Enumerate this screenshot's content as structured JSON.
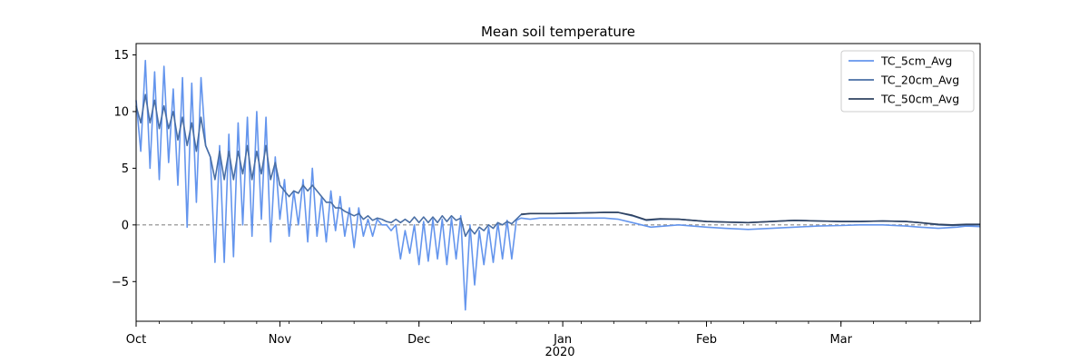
{
  "chart_data": {
    "type": "line",
    "title": "Mean soil temperature",
    "xlabel": "",
    "ylabel": "",
    "x_tick_labels": [
      "Oct",
      "Nov",
      "Dec",
      "Jan",
      "Feb",
      "Mar"
    ],
    "x_tick_dates": [
      "2019-10-01",
      "2019-11-01",
      "2019-12-01",
      "2020-01-01",
      "2020-02-01",
      "2020-03-01"
    ],
    "x_year_label": "2020",
    "xlim": [
      "2019-10-01",
      "2020-03-31"
    ],
    "y_ticks": [
      -5,
      0,
      5,
      10,
      15
    ],
    "y_tick_labels": [
      "−5",
      "0",
      "5",
      "10",
      "15"
    ],
    "ylim": [
      -8.5,
      16
    ],
    "reference_line": {
      "y": 0,
      "style": "dashed",
      "color": "#888888"
    },
    "legend_position": "top-right",
    "grid": false,
    "series": [
      {
        "name": "TC_5cm_Avg",
        "color": "#6495ED",
        "points": [
          [
            "2019-10-01",
            11.0
          ],
          [
            "2019-10-02",
            6.5
          ],
          [
            "2019-10-03",
            14.5
          ],
          [
            "2019-10-04",
            5.0
          ],
          [
            "2019-10-05",
            13.5
          ],
          [
            "2019-10-06",
            4.0
          ],
          [
            "2019-10-07",
            14.0
          ],
          [
            "2019-10-08",
            5.5
          ],
          [
            "2019-10-09",
            12.0
          ],
          [
            "2019-10-10",
            3.5
          ],
          [
            "2019-10-11",
            13.0
          ],
          [
            "2019-10-12",
            -0.2
          ],
          [
            "2019-10-13",
            12.5
          ],
          [
            "2019-10-14",
            2.0
          ],
          [
            "2019-10-15",
            13.0
          ],
          [
            "2019-10-16",
            7.0
          ],
          [
            "2019-10-17",
            6.0
          ],
          [
            "2019-10-18",
            -3.3
          ],
          [
            "2019-10-19",
            7.0
          ],
          [
            "2019-10-20",
            -3.3
          ],
          [
            "2019-10-21",
            8.0
          ],
          [
            "2019-10-22",
            -2.8
          ],
          [
            "2019-10-23",
            9.0
          ],
          [
            "2019-10-24",
            0.0
          ],
          [
            "2019-10-25",
            9.5
          ],
          [
            "2019-10-26",
            -1.0
          ],
          [
            "2019-10-27",
            10.0
          ],
          [
            "2019-10-28",
            0.5
          ],
          [
            "2019-10-29",
            9.5
          ],
          [
            "2019-10-30",
            -1.5
          ],
          [
            "2019-10-31",
            6.0
          ],
          [
            "2019-11-01",
            0.5
          ],
          [
            "2019-11-02",
            4.0
          ],
          [
            "2019-11-03",
            -1.0
          ],
          [
            "2019-11-04",
            3.0
          ],
          [
            "2019-11-05",
            0.0
          ],
          [
            "2019-11-06",
            4.0
          ],
          [
            "2019-11-07",
            -1.5
          ],
          [
            "2019-11-08",
            5.0
          ],
          [
            "2019-11-09",
            -1.0
          ],
          [
            "2019-11-10",
            2.5
          ],
          [
            "2019-11-11",
            -1.5
          ],
          [
            "2019-11-12",
            3.0
          ],
          [
            "2019-11-13",
            -0.5
          ],
          [
            "2019-11-14",
            2.5
          ],
          [
            "2019-11-15",
            -1.0
          ],
          [
            "2019-11-16",
            1.5
          ],
          [
            "2019-11-17",
            -2.0
          ],
          [
            "2019-11-18",
            1.5
          ],
          [
            "2019-11-19",
            -1.0
          ],
          [
            "2019-11-20",
            0.5
          ],
          [
            "2019-11-21",
            -1.0
          ],
          [
            "2019-11-22",
            0.5
          ],
          [
            "2019-11-23",
            0.0
          ],
          [
            "2019-11-24",
            0.0
          ],
          [
            "2019-11-25",
            -0.5
          ],
          [
            "2019-11-26",
            0.0
          ],
          [
            "2019-11-27",
            -3.0
          ],
          [
            "2019-11-28",
            -0.5
          ],
          [
            "2019-11-29",
            -2.5
          ],
          [
            "2019-11-30",
            0.0
          ],
          [
            "2019-12-01",
            -3.5
          ],
          [
            "2019-12-02",
            0.3
          ],
          [
            "2019-12-03",
            -3.2
          ],
          [
            "2019-12-04",
            0.5
          ],
          [
            "2019-12-05",
            -3.0
          ],
          [
            "2019-12-06",
            0.5
          ],
          [
            "2019-12-07",
            -3.5
          ],
          [
            "2019-12-08",
            0.6
          ],
          [
            "2019-12-09",
            -3.0
          ],
          [
            "2019-12-10",
            0.8
          ],
          [
            "2019-12-11",
            -7.5
          ],
          [
            "2019-12-12",
            0.0
          ],
          [
            "2019-12-13",
            -5.3
          ],
          [
            "2019-12-14",
            -0.5
          ],
          [
            "2019-12-15",
            -3.5
          ],
          [
            "2019-12-16",
            -0.2
          ],
          [
            "2019-12-17",
            -3.3
          ],
          [
            "2019-12-18",
            0.2
          ],
          [
            "2019-12-19",
            -3.0
          ],
          [
            "2019-12-20",
            0.4
          ],
          [
            "2019-12-21",
            -3.0
          ],
          [
            "2019-12-22",
            0.4
          ],
          [
            "2019-12-23",
            0.6
          ],
          [
            "2019-12-25",
            0.5
          ],
          [
            "2019-12-27",
            0.6
          ],
          [
            "2019-12-30",
            0.6
          ],
          [
            "2020-01-05",
            0.6
          ],
          [
            "2020-01-10",
            0.6
          ],
          [
            "2020-01-13",
            0.5
          ],
          [
            "2020-01-16",
            0.2
          ],
          [
            "2020-01-20",
            -0.2
          ],
          [
            "2020-01-23",
            -0.1
          ],
          [
            "2020-01-26",
            0.0
          ],
          [
            "2020-01-29",
            -0.1
          ],
          [
            "2020-02-01",
            -0.2
          ],
          [
            "2020-02-05",
            -0.3
          ],
          [
            "2020-02-10",
            -0.4
          ],
          [
            "2020-02-15",
            -0.3
          ],
          [
            "2020-02-20",
            -0.2
          ],
          [
            "2020-02-25",
            -0.1
          ],
          [
            "2020-03-01",
            -0.05
          ],
          [
            "2020-03-05",
            0.0
          ],
          [
            "2020-03-10",
            0.0
          ],
          [
            "2020-03-15",
            -0.1
          ],
          [
            "2020-03-18",
            -0.2
          ],
          [
            "2020-03-22",
            -0.3
          ],
          [
            "2020-03-26",
            -0.2
          ],
          [
            "2020-03-28",
            -0.1
          ],
          [
            "2020-03-31",
            -0.15
          ]
        ]
      },
      {
        "name": "TC_20cm_Avg",
        "color": "#4A6FA5",
        "points": [
          [
            "2019-10-01",
            10.5
          ],
          [
            "2019-10-02",
            9.0
          ],
          [
            "2019-10-03",
            11.5
          ],
          [
            "2019-10-04",
            9.0
          ],
          [
            "2019-10-05",
            11.0
          ],
          [
            "2019-10-06",
            8.5
          ],
          [
            "2019-10-07",
            10.5
          ],
          [
            "2019-10-08",
            8.5
          ],
          [
            "2019-10-09",
            10.0
          ],
          [
            "2019-10-10",
            7.5
          ],
          [
            "2019-10-11",
            9.5
          ],
          [
            "2019-10-12",
            7.0
          ],
          [
            "2019-10-13",
            9.0
          ],
          [
            "2019-10-14",
            6.5
          ],
          [
            "2019-10-15",
            9.5
          ],
          [
            "2019-10-16",
            7.0
          ],
          [
            "2019-10-17",
            6.0
          ],
          [
            "2019-10-18",
            4.0
          ],
          [
            "2019-10-19",
            6.5
          ],
          [
            "2019-10-20",
            4.0
          ],
          [
            "2019-10-21",
            6.5
          ],
          [
            "2019-10-22",
            4.0
          ],
          [
            "2019-10-23",
            6.5
          ],
          [
            "2019-10-24",
            4.5
          ],
          [
            "2019-10-25",
            7.0
          ],
          [
            "2019-10-26",
            4.0
          ],
          [
            "2019-10-27",
            6.5
          ],
          [
            "2019-10-28",
            4.5
          ],
          [
            "2019-10-29",
            7.0
          ],
          [
            "2019-10-30",
            4.0
          ],
          [
            "2019-10-31",
            5.5
          ],
          [
            "2019-11-01",
            3.5
          ],
          [
            "2019-11-02",
            3.0
          ],
          [
            "2019-11-03",
            2.5
          ],
          [
            "2019-11-04",
            3.0
          ],
          [
            "2019-11-05",
            2.8
          ],
          [
            "2019-11-06",
            3.5
          ],
          [
            "2019-11-07",
            3.0
          ],
          [
            "2019-11-08",
            3.5
          ],
          [
            "2019-11-09",
            3.0
          ],
          [
            "2019-11-10",
            2.5
          ],
          [
            "2019-11-11",
            2.0
          ],
          [
            "2019-11-12",
            2.0
          ],
          [
            "2019-11-13",
            1.5
          ],
          [
            "2019-11-14",
            1.5
          ],
          [
            "2019-11-15",
            1.2
          ],
          [
            "2019-11-16",
            1.0
          ],
          [
            "2019-11-17",
            0.8
          ],
          [
            "2019-11-18",
            1.0
          ],
          [
            "2019-11-19",
            0.5
          ],
          [
            "2019-11-20",
            0.8
          ],
          [
            "2019-11-21",
            0.4
          ],
          [
            "2019-11-22",
            0.6
          ],
          [
            "2019-11-23",
            0.5
          ],
          [
            "2019-11-24",
            0.3
          ],
          [
            "2019-11-25",
            0.2
          ],
          [
            "2019-11-26",
            0.5
          ],
          [
            "2019-11-27",
            0.2
          ],
          [
            "2019-11-28",
            0.5
          ],
          [
            "2019-11-29",
            0.2
          ],
          [
            "2019-11-30",
            0.7
          ],
          [
            "2019-12-01",
            0.2
          ],
          [
            "2019-12-02",
            0.7
          ],
          [
            "2019-12-03",
            0.2
          ],
          [
            "2019-12-04",
            0.7
          ],
          [
            "2019-12-05",
            0.2
          ],
          [
            "2019-12-06",
            0.8
          ],
          [
            "2019-12-07",
            0.3
          ],
          [
            "2019-12-08",
            0.8
          ],
          [
            "2019-12-09",
            0.4
          ],
          [
            "2019-12-10",
            0.6
          ],
          [
            "2019-12-11",
            -1.0
          ],
          [
            "2019-12-12",
            -0.3
          ],
          [
            "2019-12-13",
            -0.8
          ],
          [
            "2019-12-14",
            -0.2
          ],
          [
            "2019-12-15",
            -0.5
          ],
          [
            "2019-12-16",
            0.0
          ],
          [
            "2019-12-17",
            -0.3
          ],
          [
            "2019-12-18",
            0.2
          ],
          [
            "2019-12-19",
            0.0
          ],
          [
            "2019-12-20",
            0.3
          ],
          [
            "2019-12-21",
            0.1
          ],
          [
            "2019-12-22",
            0.5
          ],
          [
            "2019-12-23",
            0.9
          ],
          [
            "2019-12-25",
            1.0
          ],
          [
            "2019-12-30",
            1.0
          ],
          [
            "2020-01-05",
            1.05
          ],
          [
            "2020-01-10",
            1.1
          ],
          [
            "2020-01-13",
            1.1
          ],
          [
            "2020-01-16",
            0.8
          ],
          [
            "2020-01-19",
            0.4
          ],
          [
            "2020-01-22",
            0.5
          ],
          [
            "2020-01-26",
            0.5
          ],
          [
            "2020-01-29",
            0.4
          ],
          [
            "2020-02-01",
            0.3
          ],
          [
            "2020-02-05",
            0.25
          ],
          [
            "2020-02-10",
            0.2
          ],
          [
            "2020-02-15",
            0.3
          ],
          [
            "2020-02-20",
            0.4
          ],
          [
            "2020-02-25",
            0.35
          ],
          [
            "2020-03-01",
            0.3
          ],
          [
            "2020-03-05",
            0.3
          ],
          [
            "2020-03-10",
            0.35
          ],
          [
            "2020-03-15",
            0.3
          ],
          [
            "2020-03-18",
            0.2
          ],
          [
            "2020-03-22",
            0.0
          ],
          [
            "2020-03-25",
            -0.05
          ],
          [
            "2020-03-28",
            0.0
          ],
          [
            "2020-03-31",
            0.0
          ]
        ]
      },
      {
        "name": "TC_50cm_Avg",
        "color": "#2F4260",
        "points": [
          [
            "2019-12-23",
            0.95
          ],
          [
            "2019-12-25",
            1.0
          ],
          [
            "2019-12-30",
            1.0
          ],
          [
            "2020-01-05",
            1.05
          ],
          [
            "2020-01-10",
            1.1
          ],
          [
            "2020-01-13",
            1.1
          ],
          [
            "2020-01-16",
            0.85
          ],
          [
            "2020-01-19",
            0.45
          ],
          [
            "2020-01-22",
            0.55
          ],
          [
            "2020-01-26",
            0.5
          ],
          [
            "2020-01-29",
            0.4
          ],
          [
            "2020-02-01",
            0.3
          ],
          [
            "2020-02-05",
            0.25
          ],
          [
            "2020-02-10",
            0.2
          ],
          [
            "2020-02-15",
            0.3
          ],
          [
            "2020-02-20",
            0.4
          ],
          [
            "2020-02-25",
            0.35
          ],
          [
            "2020-03-01",
            0.3
          ],
          [
            "2020-03-05",
            0.3
          ],
          [
            "2020-03-10",
            0.35
          ],
          [
            "2020-03-15",
            0.3
          ],
          [
            "2020-03-18",
            0.2
          ],
          [
            "2020-03-22",
            0.05
          ],
          [
            "2020-03-25",
            0.0
          ],
          [
            "2020-03-28",
            0.05
          ],
          [
            "2020-03-31",
            0.05
          ]
        ]
      }
    ]
  }
}
